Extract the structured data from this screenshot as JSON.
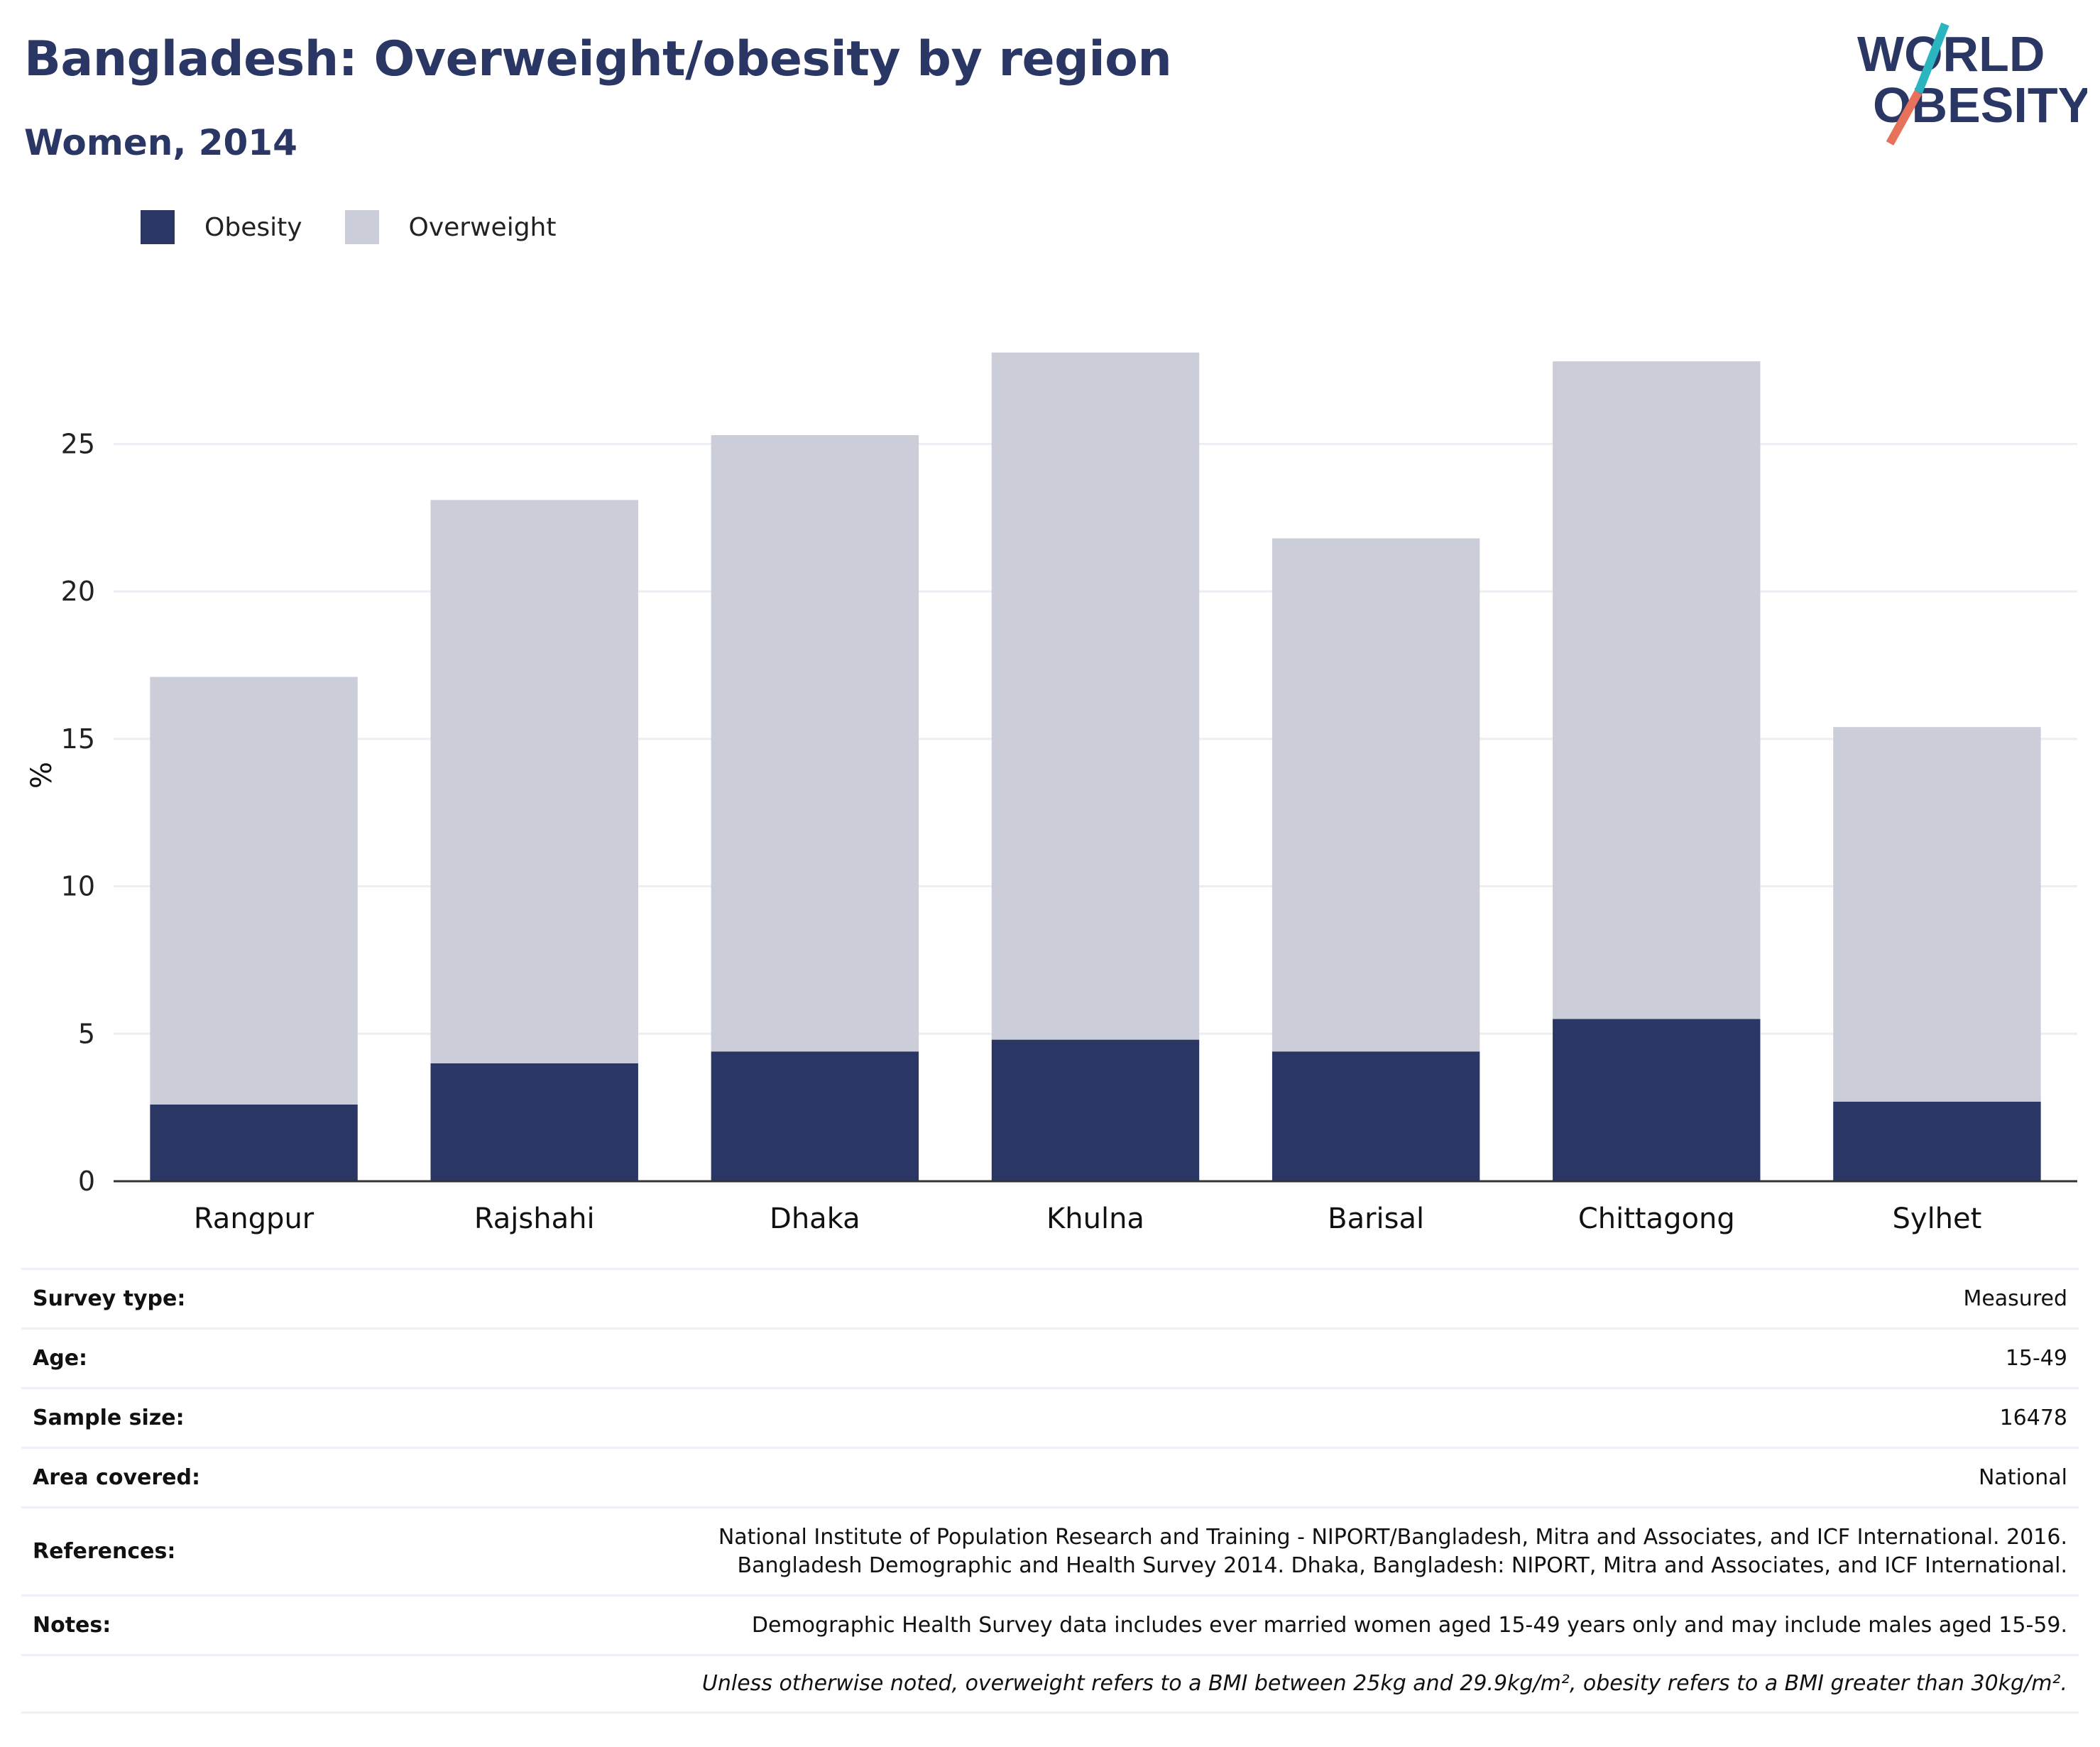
{
  "header": {
    "title": "Bangladesh: Overweight/obesity by region",
    "subtitle": "Women, 2014"
  },
  "logo": {
    "line1": "WORLD",
    "line2": "OBESITY",
    "slash_color_top": "#2bb5c0",
    "slash_color_bottom": "#e8715c"
  },
  "legend": [
    {
      "label": "Obesity",
      "color": "#2a3663"
    },
    {
      "label": "Overweight",
      "color": "#cbcdd9"
    }
  ],
  "chart_data": {
    "type": "bar",
    "stacked": true,
    "categories": [
      "Rangpur",
      "Rajshahi",
      "Dhaka",
      "Khulna",
      "Barisal",
      "Chittagong",
      "Sylhet"
    ],
    "series": [
      {
        "name": "Obesity",
        "color": "#2a3663",
        "values": [
          2.6,
          4.0,
          4.4,
          4.8,
          4.4,
          5.5,
          2.7
        ]
      },
      {
        "name": "Overweight",
        "color": "#cbcdd9",
        "values": [
          14.5,
          19.1,
          20.9,
          23.3,
          17.4,
          22.3,
          12.7
        ]
      }
    ],
    "ylabel": "%",
    "xlabel": "",
    "ylim": [
      0,
      28.5
    ],
    "yticks": [
      0,
      5,
      10,
      15,
      20,
      25
    ],
    "grid": true,
    "legend_position": "top-left"
  },
  "info": [
    {
      "key": "Survey type:",
      "value": "Measured"
    },
    {
      "key": "Age:",
      "value": "15-49"
    },
    {
      "key": "Sample size:",
      "value": "16478"
    },
    {
      "key": "Area covered:",
      "value": "National"
    },
    {
      "key": "References:",
      "value_lines": [
        "National Institute of Population Research and Training - NIPORT/Bangladesh, Mitra and Associates, and ICF International. 2016.",
        "Bangladesh Demographic and Health Survey 2014. Dhaka, Bangladesh: NIPORT, Mitra and Associates, and ICF International."
      ]
    },
    {
      "key": "Notes:",
      "value": "Demographic Health Survey data includes ever married women aged 15-49 years only and may include males aged 15-59."
    },
    {
      "key": "",
      "value": "Unless otherwise noted, overweight refers to a BMI between 25kg and 29.9kg/m², obesity refers to a BMI greater than 30kg/m²."
    }
  ]
}
